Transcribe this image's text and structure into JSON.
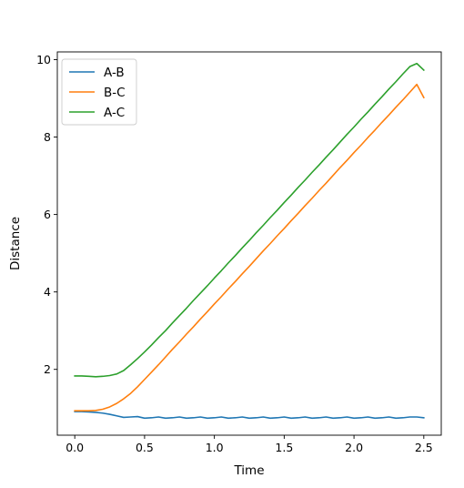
{
  "chart_data": {
    "type": "line",
    "xlabel": "Time",
    "ylabel": "Distance",
    "xlim": [
      -0.125,
      2.625
    ],
    "ylim": [
      0.3,
      10.2
    ],
    "xticks": [
      0.0,
      0.5,
      1.0,
      1.5,
      2.0,
      2.5
    ],
    "xtick_labels": [
      "0.0",
      "0.5",
      "1.0",
      "1.5",
      "2.0",
      "2.5"
    ],
    "yticks": [
      2,
      4,
      6,
      8,
      10
    ],
    "ytick_labels": [
      "2",
      "4",
      "6",
      "8",
      "10"
    ],
    "grid": false,
    "legend_position": "top-left",
    "x": [
      0.0,
      0.05,
      0.1,
      0.15,
      0.2,
      0.25,
      0.3,
      0.35,
      0.4,
      0.45,
      0.5,
      0.55,
      0.6,
      0.65,
      0.7,
      0.75,
      0.8,
      0.85,
      0.9,
      0.95,
      1.0,
      1.05,
      1.1,
      1.15,
      1.2,
      1.25,
      1.3,
      1.35,
      1.4,
      1.45,
      1.5,
      1.55,
      1.6,
      1.65,
      1.7,
      1.75,
      1.8,
      1.85,
      1.9,
      1.95,
      2.0,
      2.05,
      2.1,
      2.15,
      2.2,
      2.25,
      2.3,
      2.35,
      2.4,
      2.45,
      2.5
    ],
    "series": [
      {
        "name": "A-B",
        "color": "#1f77b4",
        "values": [
          0.91,
          0.91,
          0.9,
          0.89,
          0.87,
          0.84,
          0.8,
          0.76,
          0.77,
          0.78,
          0.74,
          0.75,
          0.77,
          0.74,
          0.75,
          0.77,
          0.74,
          0.75,
          0.77,
          0.74,
          0.75,
          0.77,
          0.74,
          0.75,
          0.77,
          0.74,
          0.75,
          0.77,
          0.74,
          0.75,
          0.77,
          0.74,
          0.75,
          0.77,
          0.74,
          0.75,
          0.77,
          0.74,
          0.75,
          0.77,
          0.74,
          0.75,
          0.77,
          0.74,
          0.75,
          0.77,
          0.74,
          0.75,
          0.77,
          0.77,
          0.75
        ]
      },
      {
        "name": "B-C",
        "color": "#ff7f0e",
        "values": [
          0.93,
          0.93,
          0.93,
          0.94,
          0.97,
          1.03,
          1.12,
          1.24,
          1.38,
          1.55,
          1.74,
          1.93,
          2.12,
          2.32,
          2.52,
          2.71,
          2.91,
          3.1,
          3.3,
          3.49,
          3.69,
          3.88,
          4.08,
          4.27,
          4.47,
          4.66,
          4.86,
          5.06,
          5.25,
          5.45,
          5.64,
          5.84,
          6.03,
          6.23,
          6.42,
          6.62,
          6.81,
          7.01,
          7.21,
          7.4,
          7.6,
          7.79,
          7.99,
          8.18,
          8.38,
          8.57,
          8.77,
          8.96,
          9.16,
          9.36,
          9.02
        ]
      },
      {
        "name": "A-C",
        "color": "#2ca02c",
        "values": [
          1.83,
          1.83,
          1.82,
          1.81,
          1.82,
          1.84,
          1.88,
          1.97,
          2.12,
          2.28,
          2.45,
          2.63,
          2.82,
          3.0,
          3.2,
          3.39,
          3.58,
          3.78,
          3.97,
          4.16,
          4.36,
          4.55,
          4.75,
          4.94,
          5.14,
          5.33,
          5.53,
          5.72,
          5.92,
          6.11,
          6.31,
          6.5,
          6.7,
          6.89,
          7.09,
          7.28,
          7.48,
          7.67,
          7.87,
          8.07,
          8.26,
          8.46,
          8.65,
          8.85,
          9.04,
          9.24,
          9.43,
          9.63,
          9.82,
          9.9,
          9.73
        ]
      }
    ]
  }
}
